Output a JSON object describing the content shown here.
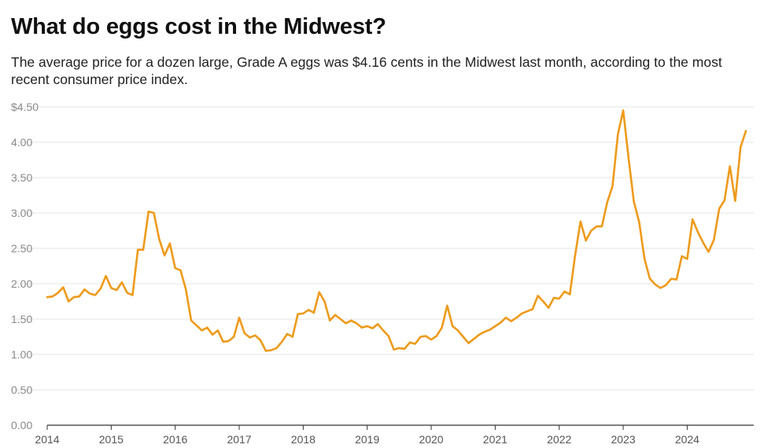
{
  "title": "What do eggs cost in the Midwest?",
  "subtitle": "The average price for a dozen large, Grade A eggs was $4.16 cents in the Midwest last month, according to the most recent consumer price index.",
  "colors": {
    "line": "#EE9A1B",
    "grid": "#e6e6e6",
    "axis": "#333333"
  },
  "chart_data": {
    "type": "line",
    "title": "What do eggs cost in the Midwest?",
    "xlabel": "",
    "ylabel": "",
    "xlim": [
      2014,
      2025.04
    ],
    "ylim": [
      0,
      4.5
    ],
    "y_ticks": [
      0,
      0.5,
      1,
      1.5,
      2,
      2.5,
      3,
      3.5,
      4,
      4.5
    ],
    "y_tick_labels": [
      "0.00",
      "0.50",
      "1.00",
      "1.50",
      "2.00",
      "2.50",
      "3.00",
      "3.50",
      "4.00",
      "$4.50"
    ],
    "x_ticks": [
      2014,
      2015,
      2016,
      2017,
      2018,
      2019,
      2020,
      2021,
      2022,
      2023,
      2024
    ],
    "x_tick_labels": [
      "2014",
      "2015",
      "2016",
      "2017",
      "2018",
      "2019",
      "2020",
      "2021",
      "2022",
      "2023",
      "2024"
    ],
    "grid": true,
    "series": [
      {
        "start": "2014-01",
        "frequency": "monthly",
        "values": [
          1.81,
          1.82,
          1.87,
          1.95,
          1.75,
          1.81,
          1.82,
          1.92,
          1.86,
          1.84,
          1.93,
          2.11,
          1.94,
          1.91,
          2.02,
          1.87,
          1.84,
          2.48,
          2.48,
          3.02,
          3.0,
          2.63,
          2.4,
          2.57,
          2.22,
          2.19,
          1.92,
          1.48,
          1.41,
          1.34,
          1.38,
          1.28,
          1.34,
          1.18,
          1.19,
          1.25,
          1.52,
          1.3,
          1.24,
          1.27,
          1.2,
          1.05,
          1.06,
          1.09,
          1.18,
          1.29,
          1.25,
          1.57,
          1.58,
          1.63,
          1.59,
          1.88,
          1.75,
          1.48,
          1.56,
          1.5,
          1.44,
          1.48,
          1.44,
          1.38,
          1.4,
          1.37,
          1.43,
          1.34,
          1.26,
          1.07,
          1.09,
          1.08,
          1.17,
          1.15,
          1.25,
          1.26,
          1.21,
          1.26,
          1.38,
          1.69,
          1.4,
          1.34,
          1.25,
          1.16,
          1.22,
          1.28,
          1.32,
          1.35,
          1.4,
          1.45,
          1.52,
          1.47,
          1.52,
          1.58,
          1.61,
          1.64,
          1.83,
          1.75,
          1.66,
          1.8,
          1.79,
          1.89,
          1.85,
          2.41,
          2.88,
          2.61,
          2.75,
          2.81,
          2.81,
          3.15,
          3.38,
          4.11,
          4.45,
          3.78,
          3.16,
          2.87,
          2.35,
          2.07,
          1.99,
          1.94,
          1.98,
          2.07,
          2.06,
          2.39,
          2.35,
          2.91,
          2.73,
          2.58,
          2.45,
          2.62,
          3.06,
          3.18,
          3.66,
          3.17,
          3.93,
          4.16
        ]
      }
    ]
  }
}
